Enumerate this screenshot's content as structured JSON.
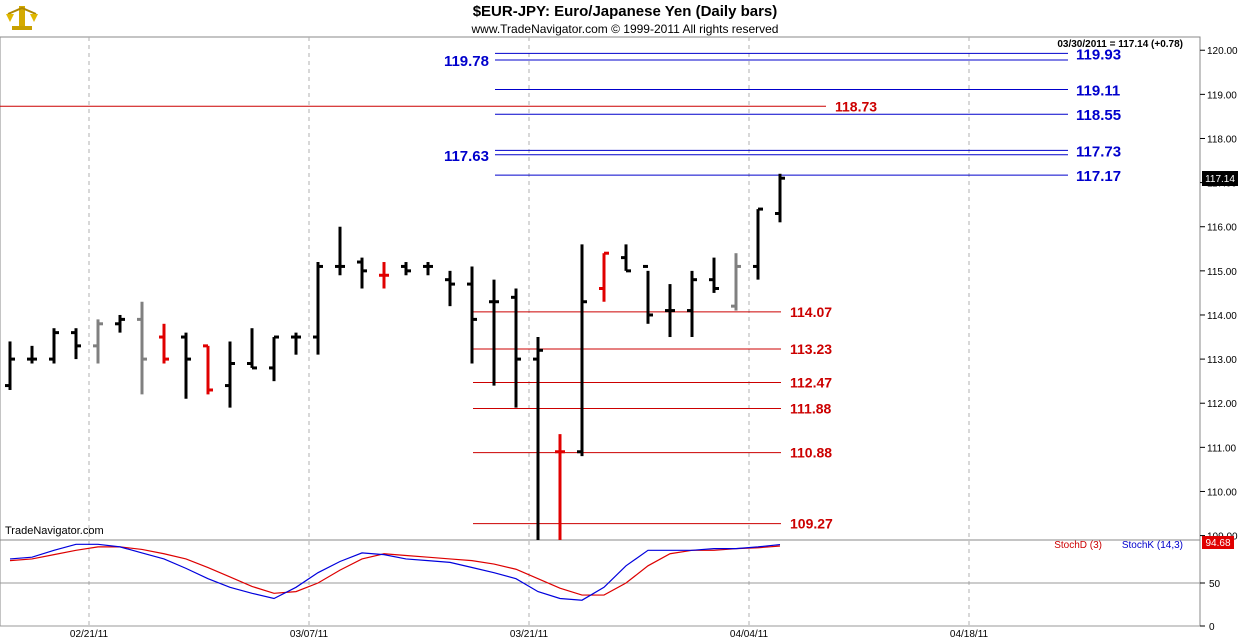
{
  "header": {
    "title": "$EUR-JPY:  Euro/Japanese Yen  (Daily bars)",
    "subtitle": "www.TradeNavigator.com © 1999-2011 All rights reserved",
    "quote": "03/30/2011 = 117.14 (+0.78)",
    "watermark": "TradeNavigator.com"
  },
  "colors": {
    "up_bar": "#000000",
    "down_bar": "#e00000",
    "neutral_bar": "#808080",
    "blue_level": "#0000cc",
    "red_level": "#cc0000",
    "stoch_k": "#0000dd",
    "stoch_d": "#dd0000"
  },
  "chart_data": [
    {
      "type": "ohlc",
      "title": "$EUR-JPY:  Euro/Japanese Yen  (Daily bars)",
      "ylim": [
        108.9,
        120.3
      ],
      "y_ticks": [
        "120.00",
        "119.00",
        "118.00",
        "117.00",
        "116.00",
        "115.00",
        "114.00",
        "113.00",
        "112.00",
        "111.00",
        "110.00",
        "109.00"
      ],
      "x_tick_labels": [
        "02/21/11",
        "03/07/11",
        "03/21/11",
        "04/04/11",
        "04/18/11"
      ],
      "last_price_label": "117.14",
      "bars": [
        {
          "o": 112.4,
          "h": 113.4,
          "l": 112.3,
          "c": 113.0,
          "col": "up"
        },
        {
          "o": 113.0,
          "h": 113.3,
          "l": 112.9,
          "c": 113.0,
          "col": "up"
        },
        {
          "o": 113.0,
          "h": 113.7,
          "l": 112.9,
          "c": 113.6,
          "col": "up"
        },
        {
          "o": 113.6,
          "h": 113.7,
          "l": 113.0,
          "c": 113.3,
          "col": "up"
        },
        {
          "o": 113.3,
          "h": 113.9,
          "l": 112.9,
          "c": 113.8,
          "col": "neutral"
        },
        {
          "o": 113.8,
          "h": 114.0,
          "l": 113.6,
          "c": 113.9,
          "col": "up"
        },
        {
          "o": 113.9,
          "h": 114.3,
          "l": 112.2,
          "c": 113.0,
          "col": "neutral"
        },
        {
          "o": 113.5,
          "h": 113.8,
          "l": 112.9,
          "c": 113.0,
          "col": "down"
        },
        {
          "o": 113.5,
          "h": 113.6,
          "l": 112.1,
          "c": 113.0,
          "col": "up"
        },
        {
          "o": 113.3,
          "h": 113.3,
          "l": 112.2,
          "c": 112.3,
          "col": "down"
        },
        {
          "o": 112.4,
          "h": 113.4,
          "l": 111.9,
          "c": 112.9,
          "col": "up"
        },
        {
          "o": 112.9,
          "h": 113.7,
          "l": 112.8,
          "c": 112.8,
          "col": "up"
        },
        {
          "o": 112.8,
          "h": 113.5,
          "l": 112.5,
          "c": 113.5,
          "col": "up"
        },
        {
          "o": 113.5,
          "h": 113.6,
          "l": 113.1,
          "c": 113.5,
          "col": "up"
        },
        {
          "o": 113.5,
          "h": 115.2,
          "l": 113.1,
          "c": 115.1,
          "col": "up"
        },
        {
          "o": 115.1,
          "h": 116.0,
          "l": 114.9,
          "c": 115.1,
          "col": "up"
        },
        {
          "o": 115.2,
          "h": 115.3,
          "l": 114.6,
          "c": 115.0,
          "col": "up"
        },
        {
          "o": 114.9,
          "h": 115.2,
          "l": 114.6,
          "c": 114.9,
          "col": "down"
        },
        {
          "o": 115.1,
          "h": 115.2,
          "l": 114.9,
          "c": 115.0,
          "col": "up"
        },
        {
          "o": 115.1,
          "h": 115.2,
          "l": 114.9,
          "c": 115.1,
          "col": "up"
        },
        {
          "o": 114.8,
          "h": 115.0,
          "l": 114.2,
          "c": 114.7,
          "col": "up"
        },
        {
          "o": 114.7,
          "h": 115.1,
          "l": 112.9,
          "c": 113.9,
          "col": "up"
        },
        {
          "o": 114.3,
          "h": 114.8,
          "l": 112.4,
          "c": 114.3,
          "col": "up"
        },
        {
          "o": 114.4,
          "h": 114.6,
          "l": 111.9,
          "c": 113.0,
          "col": "up"
        },
        {
          "o": 113.0,
          "h": 113.5,
          "l": 108.9,
          "c": 113.2,
          "col": "up"
        },
        {
          "o": 110.9,
          "h": 111.3,
          "l": 108.9,
          "c": 110.9,
          "col": "down"
        },
        {
          "o": 110.9,
          "h": 115.6,
          "l": 110.8,
          "c": 114.3,
          "col": "up"
        },
        {
          "o": 114.6,
          "h": 115.4,
          "l": 114.3,
          "c": 115.4,
          "col": "down"
        },
        {
          "o": 115.3,
          "h": 115.6,
          "l": 115.0,
          "c": 115.0,
          "col": "up"
        },
        {
          "o": 115.1,
          "h": 115.0,
          "l": 113.8,
          "c": 114.0,
          "col": "up"
        },
        {
          "o": 114.1,
          "h": 114.7,
          "l": 113.5,
          "c": 114.1,
          "col": "up"
        },
        {
          "o": 114.1,
          "h": 115.0,
          "l": 113.5,
          "c": 114.8,
          "col": "up"
        },
        {
          "o": 114.8,
          "h": 115.3,
          "l": 114.5,
          "c": 114.6,
          "col": "up"
        },
        {
          "o": 114.2,
          "h": 115.4,
          "l": 114.1,
          "c": 115.1,
          "col": "neutral"
        },
        {
          "o": 115.1,
          "h": 116.4,
          "l": 114.8,
          "c": 116.4,
          "col": "up"
        },
        {
          "o": 116.3,
          "h": 117.2,
          "l": 116.1,
          "c": 117.1,
          "col": "up"
        }
      ],
      "levels": [
        {
          "value": 119.93,
          "label": "119.93",
          "color": "blue",
          "side": "right"
        },
        {
          "value": 119.78,
          "label": "119.78",
          "color": "blue",
          "side": "left"
        },
        {
          "value": 119.11,
          "label": "119.11",
          "color": "blue",
          "side": "right"
        },
        {
          "value": 118.73,
          "label": "118.73",
          "color": "red",
          "side": "right"
        },
        {
          "value": 118.55,
          "label": "118.55",
          "color": "blue",
          "side": "right"
        },
        {
          "value": 117.73,
          "label": "117.73",
          "color": "blue",
          "side": "right"
        },
        {
          "value": 117.63,
          "label": "117.63",
          "color": "blue",
          "side": "left"
        },
        {
          "value": 117.17,
          "label": "117.17",
          "color": "blue",
          "side": "right"
        },
        {
          "value": 114.07,
          "label": "114.07",
          "color": "red",
          "side": "right"
        },
        {
          "value": 113.23,
          "label": "113.23",
          "color": "red",
          "side": "right"
        },
        {
          "value": 112.47,
          "label": "112.47",
          "color": "red",
          "side": "right"
        },
        {
          "value": 111.88,
          "label": "111.88",
          "color": "red",
          "side": "right"
        },
        {
          "value": 110.88,
          "label": "110.88",
          "color": "red",
          "side": "right"
        },
        {
          "value": 109.27,
          "label": "109.27",
          "color": "red",
          "side": "right"
        }
      ]
    },
    {
      "type": "line",
      "title": "",
      "ylim": [
        0,
        100
      ],
      "y_ticks": [
        "50",
        "0"
      ],
      "last_value_label": "94.68",
      "series": [
        {
          "name": "StochK (14,3)",
          "color": "stoch_k",
          "values": [
            78,
            80,
            88,
            95,
            95,
            92,
            85,
            78,
            67,
            55,
            45,
            38,
            32,
            45,
            62,
            75,
            85,
            83,
            78,
            76,
            74,
            68,
            62,
            55,
            40,
            32,
            30,
            45,
            70,
            88,
            88,
            88,
            90,
            90,
            92,
            94.68
          ]
        },
        {
          "name": "StochD (3)",
          "color": "stoch_d",
          "values": [
            76,
            78,
            83,
            88,
            92,
            92,
            89,
            84,
            78,
            68,
            57,
            46,
            38,
            40,
            50,
            65,
            78,
            84,
            82,
            80,
            78,
            76,
            72,
            66,
            55,
            44,
            36,
            36,
            50,
            70,
            84,
            88,
            88,
            90,
            91,
            93
          ]
        }
      ]
    }
  ]
}
